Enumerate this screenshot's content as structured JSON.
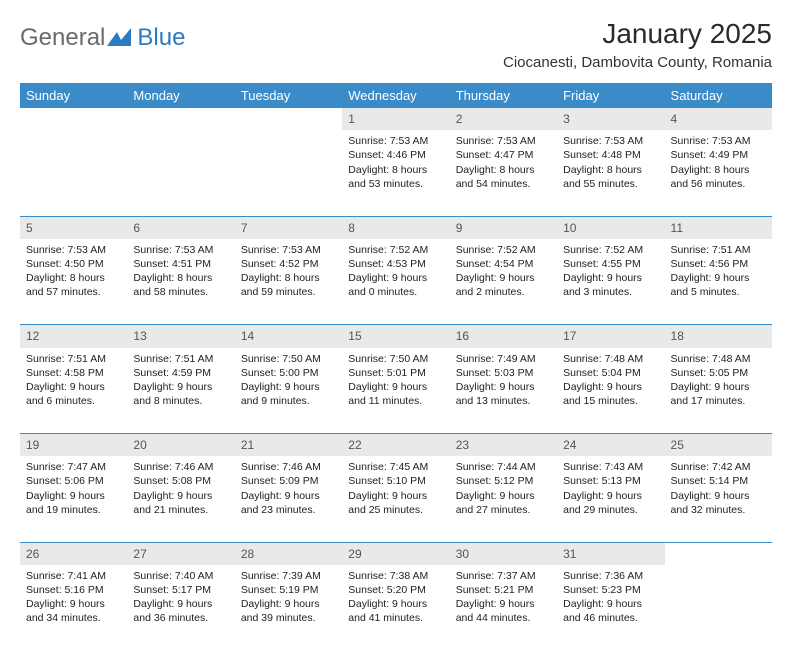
{
  "logo": {
    "text1": "General",
    "text2": "Blue"
  },
  "title": "January 2025",
  "location": "Ciocanesti, Dambovita County, Romania",
  "colors": {
    "header_bg": "#3b8bc9",
    "header_fg": "#ffffff",
    "daynum_bg": "#e9e9e9",
    "rule": "#3b8bc9",
    "logo_gray": "#6a6a6a",
    "logo_blue": "#2b7bbf"
  },
  "weekdays": [
    "Sunday",
    "Monday",
    "Tuesday",
    "Wednesday",
    "Thursday",
    "Friday",
    "Saturday"
  ],
  "weeks": [
    [
      null,
      null,
      null,
      {
        "n": "1",
        "sr": "7:53 AM",
        "ss": "4:46 PM",
        "dl": "8 hours and 53 minutes."
      },
      {
        "n": "2",
        "sr": "7:53 AM",
        "ss": "4:47 PM",
        "dl": "8 hours and 54 minutes."
      },
      {
        "n": "3",
        "sr": "7:53 AM",
        "ss": "4:48 PM",
        "dl": "8 hours and 55 minutes."
      },
      {
        "n": "4",
        "sr": "7:53 AM",
        "ss": "4:49 PM",
        "dl": "8 hours and 56 minutes."
      }
    ],
    [
      {
        "n": "5",
        "sr": "7:53 AM",
        "ss": "4:50 PM",
        "dl": "8 hours and 57 minutes."
      },
      {
        "n": "6",
        "sr": "7:53 AM",
        "ss": "4:51 PM",
        "dl": "8 hours and 58 minutes."
      },
      {
        "n": "7",
        "sr": "7:53 AM",
        "ss": "4:52 PM",
        "dl": "8 hours and 59 minutes."
      },
      {
        "n": "8",
        "sr": "7:52 AM",
        "ss": "4:53 PM",
        "dl": "9 hours and 0 minutes."
      },
      {
        "n": "9",
        "sr": "7:52 AM",
        "ss": "4:54 PM",
        "dl": "9 hours and 2 minutes."
      },
      {
        "n": "10",
        "sr": "7:52 AM",
        "ss": "4:55 PM",
        "dl": "9 hours and 3 minutes."
      },
      {
        "n": "11",
        "sr": "7:51 AM",
        "ss": "4:56 PM",
        "dl": "9 hours and 5 minutes."
      }
    ],
    [
      {
        "n": "12",
        "sr": "7:51 AM",
        "ss": "4:58 PM",
        "dl": "9 hours and 6 minutes."
      },
      {
        "n": "13",
        "sr": "7:51 AM",
        "ss": "4:59 PM",
        "dl": "9 hours and 8 minutes."
      },
      {
        "n": "14",
        "sr": "7:50 AM",
        "ss": "5:00 PM",
        "dl": "9 hours and 9 minutes."
      },
      {
        "n": "15",
        "sr": "7:50 AM",
        "ss": "5:01 PM",
        "dl": "9 hours and 11 minutes."
      },
      {
        "n": "16",
        "sr": "7:49 AM",
        "ss": "5:03 PM",
        "dl": "9 hours and 13 minutes."
      },
      {
        "n": "17",
        "sr": "7:48 AM",
        "ss": "5:04 PM",
        "dl": "9 hours and 15 minutes."
      },
      {
        "n": "18",
        "sr": "7:48 AM",
        "ss": "5:05 PM",
        "dl": "9 hours and 17 minutes."
      }
    ],
    [
      {
        "n": "19",
        "sr": "7:47 AM",
        "ss": "5:06 PM",
        "dl": "9 hours and 19 minutes."
      },
      {
        "n": "20",
        "sr": "7:46 AM",
        "ss": "5:08 PM",
        "dl": "9 hours and 21 minutes."
      },
      {
        "n": "21",
        "sr": "7:46 AM",
        "ss": "5:09 PM",
        "dl": "9 hours and 23 minutes."
      },
      {
        "n": "22",
        "sr": "7:45 AM",
        "ss": "5:10 PM",
        "dl": "9 hours and 25 minutes."
      },
      {
        "n": "23",
        "sr": "7:44 AM",
        "ss": "5:12 PM",
        "dl": "9 hours and 27 minutes."
      },
      {
        "n": "24",
        "sr": "7:43 AM",
        "ss": "5:13 PM",
        "dl": "9 hours and 29 minutes."
      },
      {
        "n": "25",
        "sr": "7:42 AM",
        "ss": "5:14 PM",
        "dl": "9 hours and 32 minutes."
      }
    ],
    [
      {
        "n": "26",
        "sr": "7:41 AM",
        "ss": "5:16 PM",
        "dl": "9 hours and 34 minutes."
      },
      {
        "n": "27",
        "sr": "7:40 AM",
        "ss": "5:17 PM",
        "dl": "9 hours and 36 minutes."
      },
      {
        "n": "28",
        "sr": "7:39 AM",
        "ss": "5:19 PM",
        "dl": "9 hours and 39 minutes."
      },
      {
        "n": "29",
        "sr": "7:38 AM",
        "ss": "5:20 PM",
        "dl": "9 hours and 41 minutes."
      },
      {
        "n": "30",
        "sr": "7:37 AM",
        "ss": "5:21 PM",
        "dl": "9 hours and 44 minutes."
      },
      {
        "n": "31",
        "sr": "7:36 AM",
        "ss": "5:23 PM",
        "dl": "9 hours and 46 minutes."
      },
      null
    ]
  ],
  "labels": {
    "sunrise": "Sunrise:",
    "sunset": "Sunset:",
    "daylight": "Daylight:"
  }
}
